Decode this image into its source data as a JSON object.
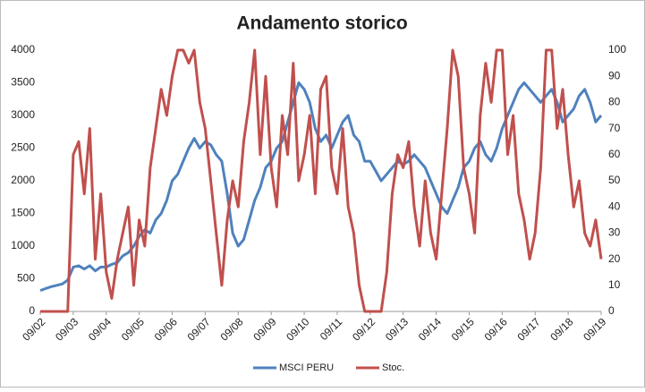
{
  "chart_data": {
    "type": "line",
    "title": "Andamento storico",
    "categories": [
      "09/02",
      null,
      null,
      null,
      null,
      null,
      "09/03",
      null,
      null,
      null,
      null,
      null,
      "09/04",
      null,
      null,
      null,
      null,
      null,
      "09/05",
      null,
      null,
      null,
      null,
      null,
      "09/06",
      null,
      null,
      null,
      null,
      null,
      "09/07",
      null,
      null,
      null,
      null,
      null,
      "09/08",
      null,
      null,
      null,
      null,
      null,
      "09/09",
      null,
      null,
      null,
      null,
      null,
      "09/10",
      null,
      null,
      null,
      null,
      null,
      "09/11",
      null,
      null,
      null,
      null,
      null,
      "09/12",
      null,
      null,
      null,
      null,
      null,
      "09/13",
      null,
      null,
      null,
      null,
      null,
      "09/14",
      null,
      null,
      null,
      null,
      null,
      "09/15",
      null,
      null,
      null,
      null,
      null,
      "09/16",
      null,
      null,
      null,
      null,
      null,
      "09/17",
      null,
      null,
      null,
      null,
      null,
      "09/18",
      null,
      null,
      null,
      null,
      null,
      "09/19"
    ],
    "series": [
      {
        "name": "MSCI PERU",
        "color": "#4f81bd",
        "axis": "y",
        "values": [
          320,
          350,
          380,
          400,
          420,
          480,
          680,
          700,
          650,
          700,
          620,
          680,
          680,
          720,
          750,
          850,
          900,
          1000,
          1150,
          1250,
          1200,
          1400,
          1500,
          1700,
          2000,
          2100,
          2300,
          2500,
          2650,
          2500,
          2600,
          2550,
          2400,
          2300,
          1800,
          1200,
          1000,
          1100,
          1400,
          1700,
          1900,
          2200,
          2300,
          2500,
          2600,
          2900,
          3200,
          3500,
          3400,
          3200,
          2800,
          2600,
          2700,
          2500,
          2700,
          2900,
          3000,
          2700,
          2600,
          2300,
          2300,
          2150,
          2000,
          2100,
          2200,
          2300,
          2250,
          2300,
          2400,
          2300,
          2200,
          2000,
          1800,
          1600,
          1500,
          1700,
          1900,
          2200,
          2300,
          2500,
          2600,
          2400,
          2300,
          2500,
          2800,
          3000,
          3200,
          3400,
          3500,
          3400,
          3300,
          3200,
          3300,
          3400,
          3200,
          2900,
          3000,
          3100,
          3300,
          3400,
          3200,
          2900,
          3000
        ]
      },
      {
        "name": "Stoc.",
        "color": "#c0504d",
        "axis": "y2",
        "values": [
          0,
          0,
          0,
          0,
          0,
          0,
          60,
          65,
          45,
          70,
          20,
          45,
          15,
          5,
          20,
          30,
          40,
          10,
          35,
          25,
          55,
          70,
          85,
          75,
          90,
          100,
          100,
          95,
          100,
          80,
          70,
          50,
          30,
          10,
          35,
          50,
          40,
          65,
          80,
          100,
          60,
          90,
          55,
          40,
          75,
          60,
          95,
          50,
          60,
          75,
          45,
          85,
          90,
          55,
          45,
          70,
          40,
          30,
          10,
          0,
          0,
          0,
          0,
          15,
          45,
          60,
          55,
          65,
          40,
          25,
          50,
          30,
          20,
          45,
          70,
          100,
          90,
          55,
          45,
          30,
          75,
          95,
          80,
          100,
          100,
          60,
          75,
          45,
          35,
          20,
          30,
          55,
          100,
          100,
          70,
          85,
          60,
          40,
          50,
          30,
          25,
          35,
          20
        ]
      }
    ],
    "ylim": [
      0,
      4000
    ],
    "yticks": [
      0,
      500,
      1000,
      1500,
      2000,
      2500,
      3000,
      3500,
      4000
    ],
    "y2lim": [
      0,
      100
    ],
    "y2ticks": [
      0,
      10,
      20,
      30,
      40,
      50,
      60,
      70,
      80,
      90,
      100
    ],
    "grid": false,
    "legend": "bottom"
  }
}
